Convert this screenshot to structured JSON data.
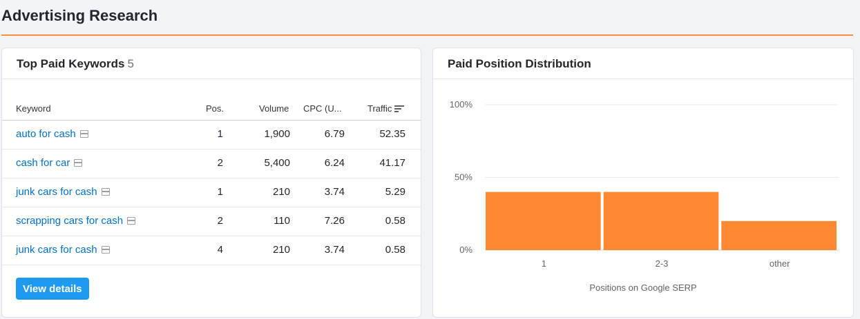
{
  "section": {
    "title": "Advertising Research"
  },
  "keywords_card": {
    "title": "Top Paid Keywords",
    "count": "5",
    "columns": {
      "keyword": "Keyword",
      "pos": "Pos.",
      "volume": "Volume",
      "cpc": "CPC (U...",
      "traffic": "Traffic"
    },
    "rows": [
      {
        "keyword": "auto for cash",
        "pos": "1",
        "volume": "1,900",
        "cpc": "6.79",
        "traffic": "52.35"
      },
      {
        "keyword": "cash for car",
        "pos": "2",
        "volume": "5,400",
        "cpc": "6.24",
        "traffic": "41.17"
      },
      {
        "keyword": "junk cars for cash",
        "pos": "1",
        "volume": "210",
        "cpc": "3.74",
        "traffic": "5.29"
      },
      {
        "keyword": "scrapping cars for cash",
        "pos": "2",
        "volume": "110",
        "cpc": "7.26",
        "traffic": "0.58"
      },
      {
        "keyword": "junk cars for cash",
        "pos": "4",
        "volume": "210",
        "cpc": "3.74",
        "traffic": "0.58"
      }
    ],
    "view_details_label": "View details",
    "icons": {
      "serp": "serp-features-icon",
      "sort": "sort-descending-icon"
    },
    "colors": {
      "link": "#0070c9",
      "button": "#1e9bf0"
    }
  },
  "distribution_card": {
    "title": "Paid Position Distribution"
  },
  "chart_data": {
    "type": "bar",
    "categories": [
      "1",
      "2-3",
      "other"
    ],
    "values": [
      40,
      40,
      20
    ],
    "xlabel": "Positions on Google SERP",
    "ylabel": "",
    "ylim": [
      0,
      100
    ],
    "yticks": [
      "0%",
      "50%",
      "100%"
    ],
    "grid": true,
    "color": "#ff8833"
  }
}
